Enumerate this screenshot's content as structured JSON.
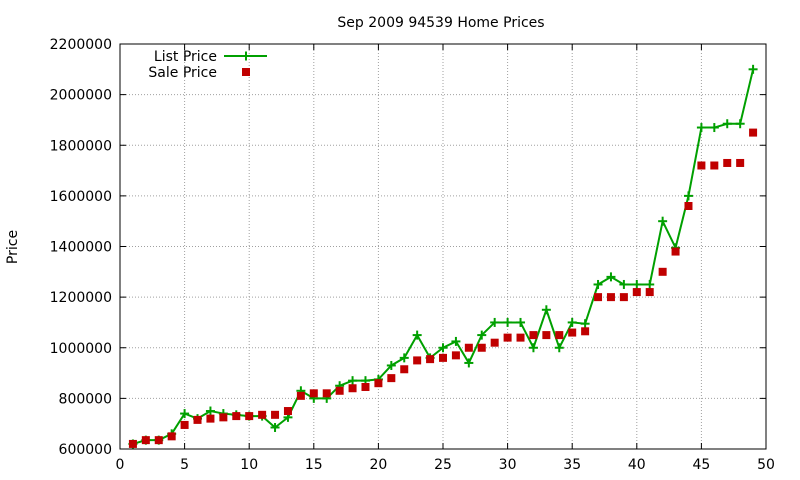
{
  "chart_data": {
    "type": "line",
    "title": "Sep 2009 94539 Home Prices",
    "xlabel": "",
    "ylabel": "Price",
    "xlim": [
      0,
      50
    ],
    "ylim": [
      600000,
      2200000
    ],
    "x_ticks": [
      "0",
      "5",
      "10",
      "15",
      "20",
      "25",
      "30",
      "35",
      "40",
      "45",
      "50"
    ],
    "y_ticks": [
      "600000",
      "800000",
      "1000000",
      "1200000",
      "1400000",
      "1600000",
      "1800000",
      "2000000",
      "2200000"
    ],
    "grid": true,
    "legend_position": "top-left",
    "series": [
      {
        "name": "List Price",
        "style": "line-with-plus-markers",
        "color": "#00a000",
        "x": [
          1,
          2,
          3,
          4,
          5,
          6,
          7,
          8,
          9,
          10,
          11,
          12,
          13,
          14,
          15,
          16,
          17,
          18,
          19,
          20,
          21,
          22,
          23,
          24,
          25,
          26,
          27,
          28,
          29,
          30,
          31,
          32,
          33,
          34,
          35,
          36,
          37,
          38,
          39,
          40,
          41,
          42,
          43,
          44,
          45,
          46,
          47,
          48,
          49
        ],
        "values": [
          620000,
          635000,
          635000,
          660000,
          740000,
          720000,
          750000,
          740000,
          735000,
          730000,
          730000,
          685000,
          725000,
          830000,
          800000,
          800000,
          850000,
          870000,
          870000,
          875000,
          930000,
          960000,
          1050000,
          960000,
          1000000,
          1025000,
          940000,
          1050000,
          1100000,
          1100000,
          1100000,
          1000000,
          1150000,
          1000000,
          1100000,
          1095000,
          1250000,
          1280000,
          1250000,
          1250000,
          1250000,
          1500000,
          1395000,
          1600000,
          1870000,
          1870000,
          1885000,
          1885000,
          2100000
        ]
      },
      {
        "name": "Sale Price",
        "style": "square-markers",
        "color": "#c00000",
        "x": [
          1,
          2,
          3,
          4,
          5,
          6,
          7,
          8,
          9,
          10,
          11,
          12,
          13,
          14,
          15,
          16,
          17,
          18,
          19,
          20,
          21,
          22,
          23,
          24,
          25,
          26,
          27,
          28,
          29,
          30,
          31,
          32,
          33,
          34,
          35,
          36,
          37,
          38,
          39,
          40,
          41,
          42,
          43,
          44,
          45,
          46,
          47,
          48,
          49
        ],
        "values": [
          620000,
          635000,
          635000,
          650000,
          695000,
          715000,
          720000,
          725000,
          730000,
          730000,
          735000,
          735000,
          750000,
          810000,
          820000,
          820000,
          830000,
          840000,
          845000,
          860000,
          880000,
          915000,
          950000,
          955000,
          960000,
          970000,
          1000000,
          1000000,
          1020000,
          1040000,
          1040000,
          1050000,
          1050000,
          1050000,
          1060000,
          1065000,
          1200000,
          1200000,
          1200000,
          1220000,
          1220000,
          1300000,
          1380000,
          1560000,
          1720000,
          1720000,
          1730000,
          1730000,
          1850000
        ]
      }
    ]
  }
}
